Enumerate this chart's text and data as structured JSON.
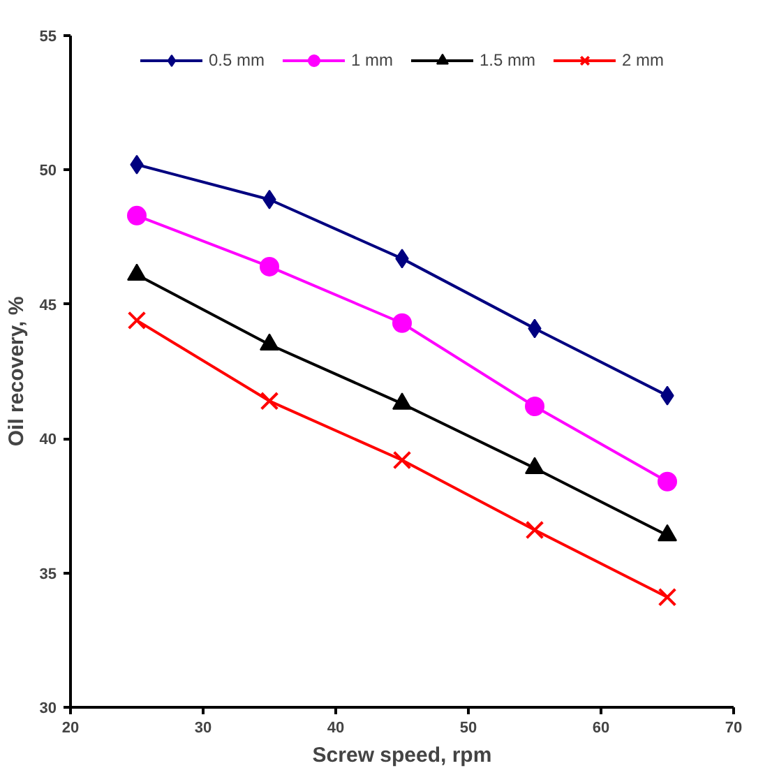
{
  "chart_data": {
    "type": "line",
    "xlabel": "Screw speed, rpm",
    "ylabel": "Oil recovery, %",
    "x": [
      25,
      35,
      45,
      55,
      65
    ],
    "series": [
      {
        "name": "0.5 mm",
        "color": "#000080",
        "marker": "diamond",
        "values": [
          50.2,
          48.9,
          46.7,
          44.1,
          41.6
        ]
      },
      {
        "name": "1 mm",
        "color": "#ff00ff",
        "marker": "circle",
        "values": [
          48.3,
          46.4,
          44.3,
          41.2,
          38.4
        ]
      },
      {
        "name": "1.5 mm",
        "color": "#000000",
        "marker": "triangle",
        "values": [
          46.1,
          43.5,
          41.3,
          38.9,
          36.4
        ]
      },
      {
        "name": "2 mm",
        "color": "#ff0000",
        "marker": "cross",
        "values": [
          44.4,
          41.4,
          39.2,
          36.6,
          34.1
        ]
      }
    ],
    "xlim": [
      20,
      70
    ],
    "xticks": [
      20,
      30,
      40,
      50,
      60,
      70
    ],
    "ylim": [
      30,
      55
    ],
    "yticks": [
      30,
      35,
      40,
      45,
      50,
      55
    ],
    "grid": false,
    "legend": "top",
    "line_style": "solid"
  }
}
